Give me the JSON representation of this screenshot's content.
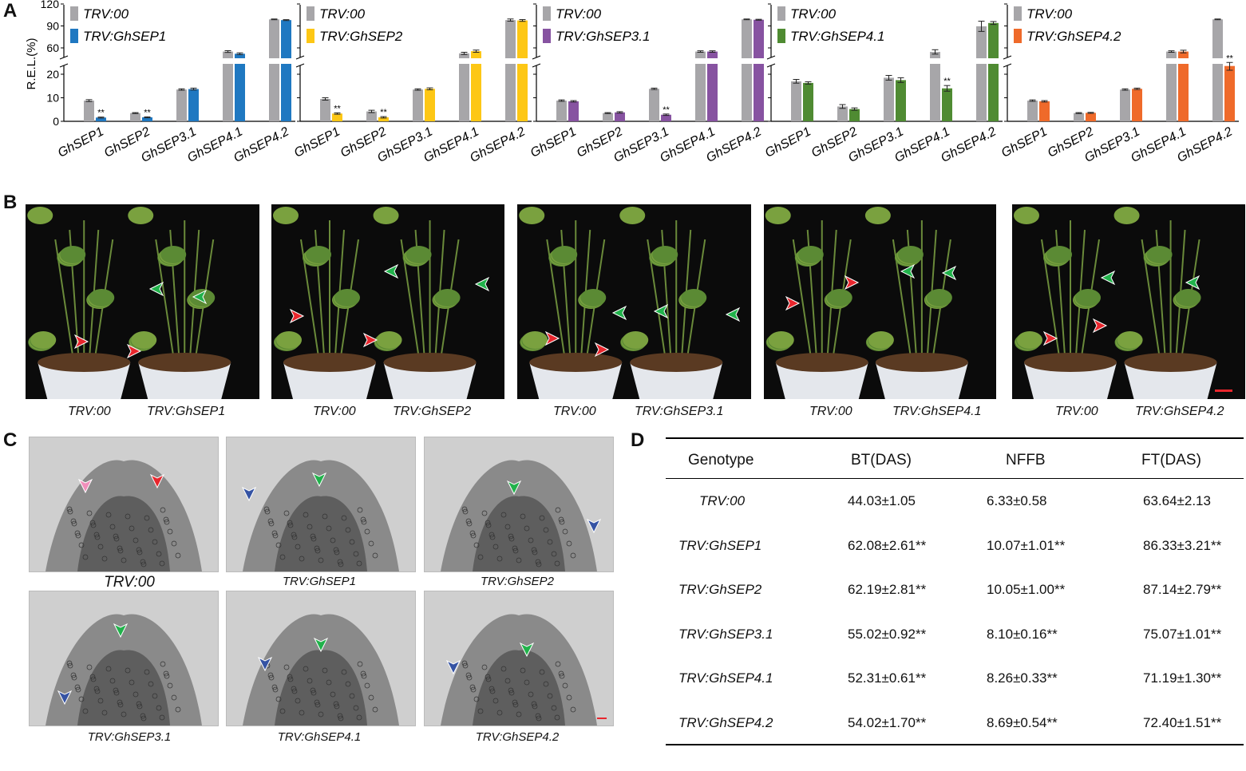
{
  "panels": {
    "a": "A",
    "b": "B",
    "c": "C",
    "d": "D"
  },
  "colors": {
    "control": "#a7a6a9",
    "ghsep1": "#1f78c1",
    "ghsep2": "#fdc715",
    "ghsep31": "#8753a1",
    "ghsep41": "#4f8b32",
    "ghsep42": "#ef6a2a",
    "arrow_red": "#e8262d",
    "arrow_green": "#21b24b",
    "arrow_blue": "#3553a4",
    "arrow_pink": "#f08fbb",
    "scale_bar": "#e8262d"
  },
  "chart_data": [
    {
      "type": "bar",
      "ylabel": "R.E.L.(%)",
      "yticks": [
        "0",
        "10",
        "20",
        "60",
        "90",
        "120"
      ],
      "ylim": [
        0,
        120
      ],
      "axis_break": [
        25,
        50
      ],
      "categories": [
        "GhSEP1",
        "GhSEP2",
        "GhSEP3.1",
        "GhSEP4.1",
        "GhSEP4.2"
      ],
      "series": [
        {
          "name": "TRV:00",
          "values": [
            8.8,
            3.5,
            13.5,
            55.0,
            99.0
          ],
          "errors": [
            0.4,
            0.2,
            0.3,
            1.2,
            0.5
          ]
        },
        {
          "name": "TRV:GhSEP1",
          "values": [
            1.6,
            1.7,
            13.7,
            52.0,
            98.0
          ],
          "errors": [
            0.2,
            0.2,
            0.4,
            1.2,
            0.6
          ]
        }
      ],
      "annotations": [
        {
          "category": "GhSEP1",
          "text": "**"
        },
        {
          "category": "GhSEP2",
          "text": "**"
        }
      ]
    },
    {
      "type": "bar",
      "categories": [
        "GhSEP1",
        "GhSEP2",
        "GhSEP3.1",
        "GhSEP4.1",
        "GhSEP4.2"
      ],
      "series": [
        {
          "name": "TRV:00",
          "values": [
            9.5,
            4.2,
            13.5,
            52.5,
            98.0
          ],
          "errors": [
            0.5,
            0.5,
            0.3,
            1.5,
            1.5
          ]
        },
        {
          "name": "TRV:GhSEP2",
          "values": [
            3.3,
            1.7,
            13.8,
            55.5,
            97.5
          ],
          "errors": [
            0.3,
            0.3,
            0.4,
            1.5,
            1.2
          ]
        }
      ],
      "annotations": [
        {
          "category": "GhSEP1",
          "text": "**"
        },
        {
          "category": "GhSEP2",
          "text": "**"
        }
      ]
    },
    {
      "type": "bar",
      "categories": [
        "GhSEP1",
        "GhSEP2",
        "GhSEP3.1",
        "GhSEP4.1",
        "GhSEP4.2"
      ],
      "series": [
        {
          "name": "TRV:00",
          "values": [
            8.8,
            3.5,
            13.8,
            55.0,
            99.0
          ],
          "errors": [
            0.3,
            0.2,
            0.3,
            1.0,
            0.5
          ]
        },
        {
          "name": "TRV:GhSEP3.1",
          "values": [
            8.5,
            3.8,
            2.8,
            55.0,
            98.5
          ],
          "errors": [
            0.3,
            0.3,
            0.3,
            1.0,
            0.6
          ]
        }
      ],
      "annotations": [
        {
          "category": "GhSEP3.1",
          "text": "**"
        }
      ]
    },
    {
      "type": "bar",
      "categories": [
        "GhSEP1",
        "GhSEP2",
        "GhSEP3.1",
        "GhSEP4.1",
        "GhSEP4.2"
      ],
      "series": [
        {
          "name": "TRV:00",
          "values": [
            17.0,
            6.3,
            18.5,
            54.5,
            89.5
          ],
          "errors": [
            0.8,
            0.8,
            1.0,
            3.0,
            7.0
          ]
        },
        {
          "name": "TRV:GhSEP4.1",
          "values": [
            16.3,
            5.2,
            17.5,
            14.0,
            94.0
          ],
          "errors": [
            0.5,
            0.5,
            1.0,
            1.2,
            2.0
          ]
        }
      ],
      "annotations": [
        {
          "category": "GhSEP4.1",
          "text": "**"
        }
      ]
    },
    {
      "type": "bar",
      "categories": [
        "GhSEP1",
        "GhSEP2",
        "GhSEP3.1",
        "GhSEP4.1",
        "GhSEP4.2"
      ],
      "series": [
        {
          "name": "TRV:00",
          "values": [
            8.8,
            3.5,
            13.5,
            55.0,
            99.0
          ],
          "errors": [
            0.3,
            0.2,
            0.3,
            1.0,
            0.5
          ]
        },
        {
          "name": "TRV:GhSEP4.2",
          "values": [
            8.5,
            3.6,
            13.8,
            55.0,
            23.5
          ],
          "errors": [
            0.3,
            0.2,
            0.3,
            1.8,
            1.8
          ]
        }
      ],
      "annotations": [
        {
          "category": "GhSEP4.2",
          "text": "**"
        }
      ]
    }
  ],
  "photos_b": [
    {
      "left": "TRV:00",
      "right": "TRV:GhSEP1"
    },
    {
      "left": "TRV:00",
      "right": "TRV:GhSEP2"
    },
    {
      "left": "TRV:00",
      "right": "TRV:GhSEP3.1"
    },
    {
      "left": "TRV:00",
      "right": "TRV:GhSEP4.1"
    },
    {
      "left": "TRV:00",
      "right": "TRV:GhSEP4.2"
    }
  ],
  "sections_c": [
    "TRV:00",
    "TRV:GhSEP1",
    "TRV:GhSEP2",
    "TRV:GhSEP3.1",
    "TRV:GhSEP4.1",
    "TRV:GhSEP4.2"
  ],
  "table_d": {
    "headers": [
      "Genotype",
      "BT(DAS)",
      "NFFB",
      "FT(DAS)"
    ],
    "rows": [
      [
        "TRV:00",
        "44.03±1.05",
        "6.33±0.58",
        "63.64±2.13"
      ],
      [
        "TRV:GhSEP1",
        "62.08±2.61**",
        "10.07±1.01**",
        "86.33±3.21**"
      ],
      [
        "TRV:GhSEP2",
        "62.19±2.81**",
        "10.05±1.00**",
        "87.14±2.79**"
      ],
      [
        "TRV:GhSEP3.1",
        "55.02±0.92**",
        "8.10±0.16**",
        "75.07±1.01**"
      ],
      [
        "TRV:GhSEP4.1",
        "52.31±0.61**",
        "8.26±0.33**",
        "71.19±1.30**"
      ],
      [
        "TRV:GhSEP4.2",
        "54.02±1.70**",
        "8.69±0.54**",
        "72.40±1.51**"
      ]
    ]
  }
}
